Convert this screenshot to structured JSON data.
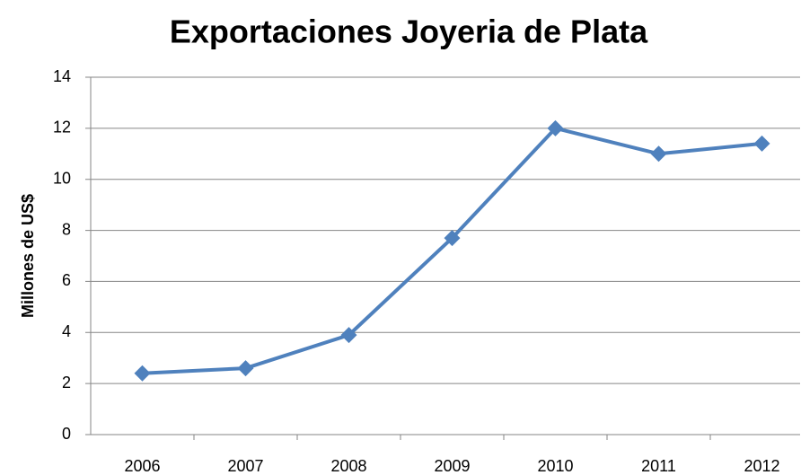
{
  "chart_data": {
    "type": "line",
    "title": "Exportaciones Joyeria de Plata",
    "y_label": "Millones de US$",
    "categories": [
      "2006",
      "2007",
      "2008",
      "2009",
      "2010",
      "2011",
      "2012"
    ],
    "series": [
      {
        "name": "Exportaciones",
        "color": "#4f81bd",
        "values": [
          2.4,
          2.6,
          3.9,
          7.7,
          12.0,
          11.0,
          11.4
        ]
      }
    ],
    "ylim": [
      0,
      14
    ],
    "yticks": [
      0,
      2,
      4,
      6,
      8,
      10,
      12,
      14
    ],
    "grid": true
  }
}
